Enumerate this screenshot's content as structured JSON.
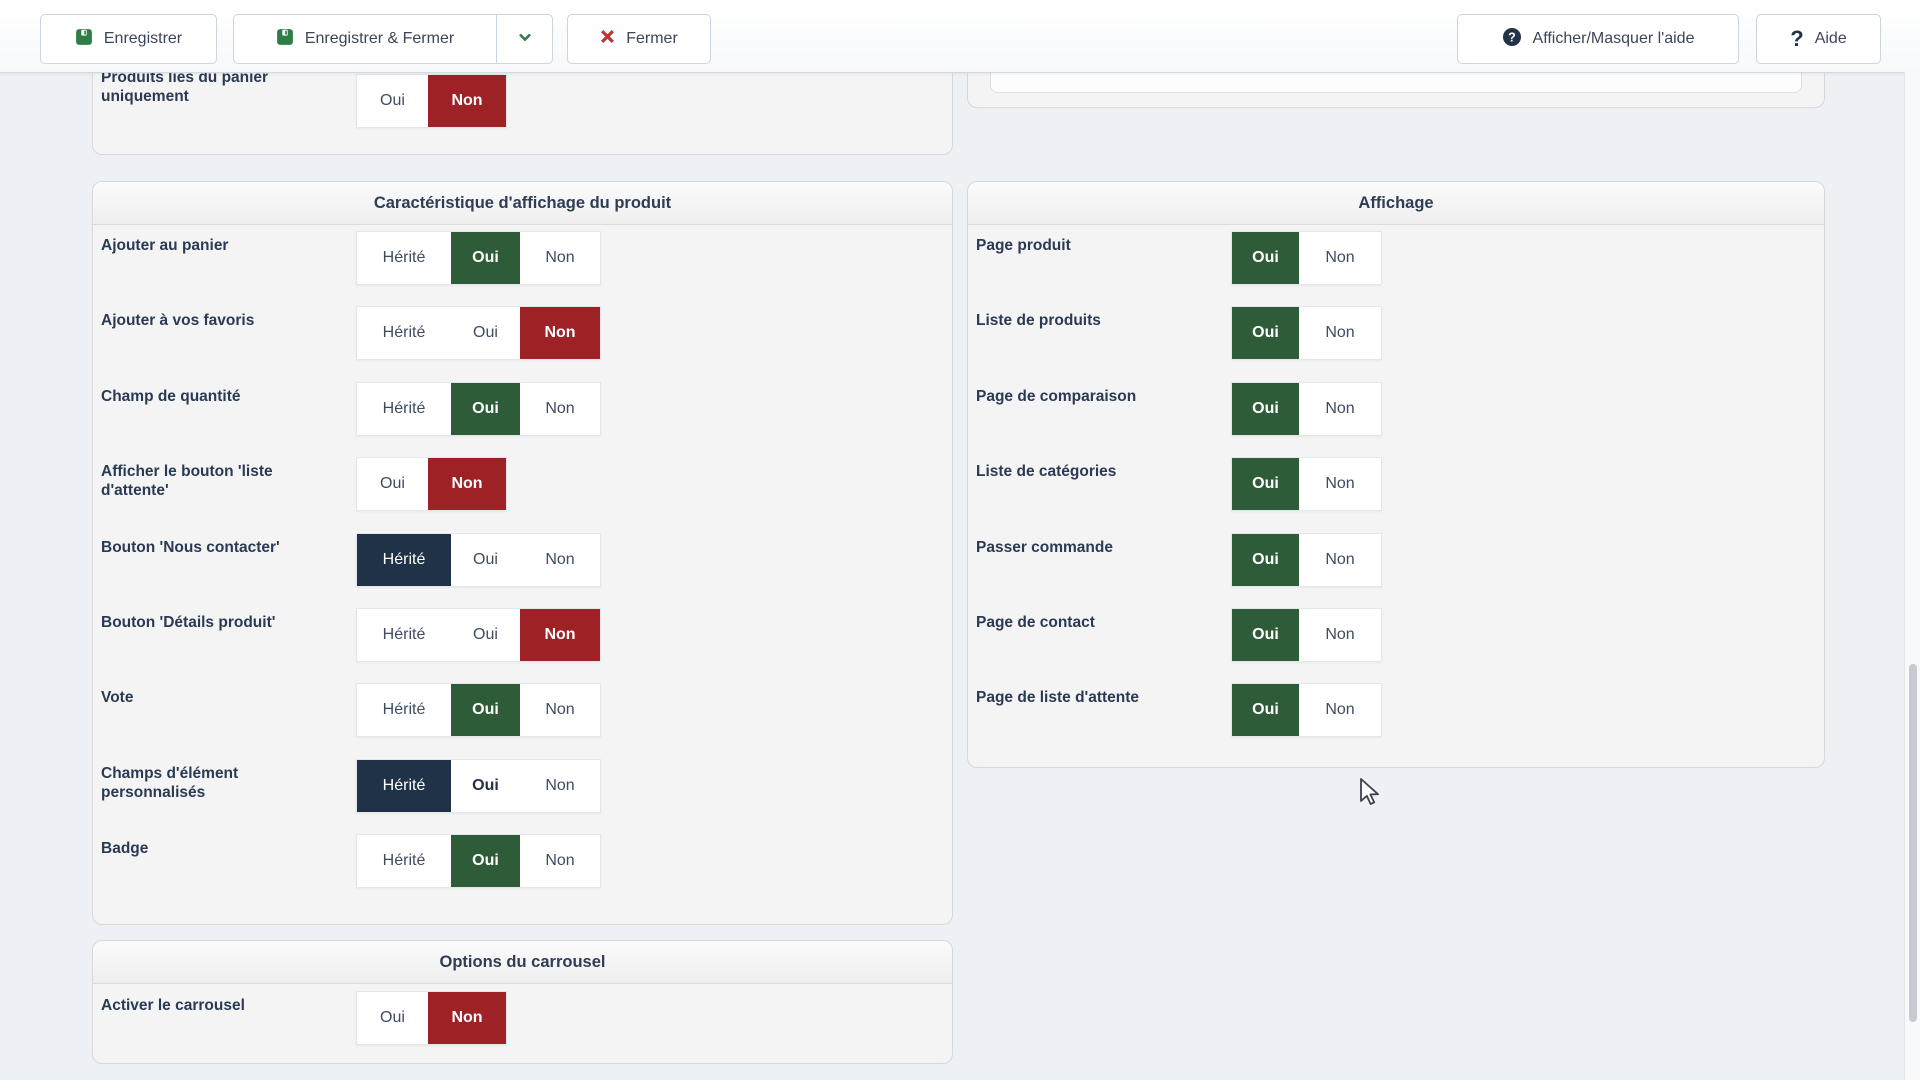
{
  "toolbar": {
    "save_label": "Enregistrer",
    "save_close_label": "Enregistrer & Fermer",
    "close_label": "Fermer",
    "toggle_help_label": "Afficher/Masquer l'aide",
    "help_label": "Aide",
    "help_question_glyph": "?",
    "icons": [
      "save-icon",
      "chevron-down-icon",
      "close-x-icon",
      "help-circle-icon",
      "question-icon"
    ]
  },
  "colors": {
    "oui_selected_green": "#2E5C39",
    "non_selected_red": "#9E2126",
    "herite_selected_navy": "#1F3247",
    "label_text": "#2B3A54",
    "panel_background": "#F4F4F5",
    "page_background": "#EDF0F4"
  },
  "partial_top_panel": {
    "rows": [
      {
        "label": "Produits liés du panier uniquement",
        "options": [
          {
            "t": "Oui"
          },
          {
            "t": "Non",
            "sel": "red"
          }
        ]
      }
    ]
  },
  "panels": {
    "left": {
      "title": "Caractéristique d'affichage du produit",
      "rows": [
        {
          "label": "Ajouter au panier",
          "options": [
            {
              "t": "Hérité"
            },
            {
              "t": "Oui",
              "sel": "green"
            },
            {
              "t": "Non"
            }
          ]
        },
        {
          "label": "Ajouter à vos favoris",
          "options": [
            {
              "t": "Hérité"
            },
            {
              "t": "Oui"
            },
            {
              "t": "Non",
              "sel": "red"
            }
          ]
        },
        {
          "label": "Champ de quantité",
          "options": [
            {
              "t": "Hérité"
            },
            {
              "t": "Oui",
              "sel": "green"
            },
            {
              "t": "Non"
            }
          ]
        },
        {
          "label": "Afficher le bouton 'liste d'attente'",
          "options": [
            {
              "t": "Oui"
            },
            {
              "t": "Non",
              "sel": "red"
            }
          ]
        },
        {
          "label": "Bouton 'Nous contacter'",
          "options": [
            {
              "t": "Hérité",
              "sel": "navy"
            },
            {
              "t": "Oui"
            },
            {
              "t": "Non"
            }
          ]
        },
        {
          "label": "Bouton 'Détails produit'",
          "options": [
            {
              "t": "Hérité"
            },
            {
              "t": "Oui"
            },
            {
              "t": "Non",
              "sel": "red"
            }
          ]
        },
        {
          "label": "Vote",
          "options": [
            {
              "t": "Hérité"
            },
            {
              "t": "Oui",
              "sel": "green"
            },
            {
              "t": "Non"
            }
          ]
        },
        {
          "label": "Champs d'élément personnalisés",
          "options": [
            {
              "t": "Hérité",
              "sel": "navy"
            },
            {
              "t": "Oui",
              "bold": true
            },
            {
              "t": "Non"
            }
          ]
        },
        {
          "label": "Badge",
          "options": [
            {
              "t": "Hérité"
            },
            {
              "t": "Oui",
              "sel": "green"
            },
            {
              "t": "Non"
            }
          ]
        }
      ]
    },
    "right": {
      "title": "Affichage",
      "rows": [
        {
          "label": "Page produit",
          "options": [
            {
              "t": "Oui",
              "sel": "green"
            },
            {
              "t": "Non"
            }
          ]
        },
        {
          "label": "Liste de produits",
          "options": [
            {
              "t": "Oui",
              "sel": "green"
            },
            {
              "t": "Non"
            }
          ]
        },
        {
          "label": "Page de comparaison",
          "options": [
            {
              "t": "Oui",
              "sel": "green"
            },
            {
              "t": "Non"
            }
          ]
        },
        {
          "label": "Liste de catégories",
          "options": [
            {
              "t": "Oui",
              "sel": "green"
            },
            {
              "t": "Non"
            }
          ]
        },
        {
          "label": "Passer commande",
          "options": [
            {
              "t": "Oui",
              "sel": "green"
            },
            {
              "t": "Non"
            }
          ]
        },
        {
          "label": "Page de contact",
          "options": [
            {
              "t": "Oui",
              "sel": "green"
            },
            {
              "t": "Non"
            }
          ]
        },
        {
          "label": "Page de liste d'attente",
          "options": [
            {
              "t": "Oui",
              "sel": "green"
            },
            {
              "t": "Non"
            }
          ]
        }
      ]
    },
    "carousel": {
      "title": "Options du carrousel",
      "rows": [
        {
          "label": "Activer le carrousel",
          "options": [
            {
              "t": "Oui"
            },
            {
              "t": "Non",
              "sel": "red"
            }
          ]
        }
      ]
    }
  }
}
